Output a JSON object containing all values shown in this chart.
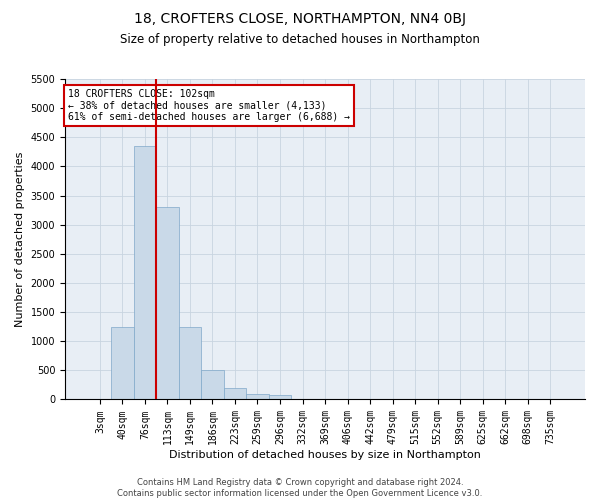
{
  "title": "18, CROFTERS CLOSE, NORTHAMPTON, NN4 0BJ",
  "subtitle": "Size of property relative to detached houses in Northampton",
  "xlabel": "Distribution of detached houses by size in Northampton",
  "ylabel": "Number of detached properties",
  "footer_line1": "Contains HM Land Registry data © Crown copyright and database right 2024.",
  "footer_line2": "Contains public sector information licensed under the Open Government Licence v3.0.",
  "annotation_title": "18 CROFTERS CLOSE: 102sqm",
  "annotation_line1": "← 38% of detached houses are smaller (4,133)",
  "annotation_line2": "61% of semi-detached houses are larger (6,688) →",
  "bar_categories": [
    "3sqm",
    "40sqm",
    "76sqm",
    "113sqm",
    "149sqm",
    "186sqm",
    "223sqm",
    "259sqm",
    "296sqm",
    "332sqm",
    "369sqm",
    "406sqm",
    "442sqm",
    "479sqm",
    "515sqm",
    "552sqm",
    "589sqm",
    "625sqm",
    "662sqm",
    "698sqm",
    "735sqm"
  ],
  "bar_values": [
    0,
    1250,
    4350,
    3300,
    1250,
    500,
    200,
    100,
    75,
    0,
    0,
    0,
    0,
    0,
    0,
    0,
    0,
    0,
    0,
    0,
    0
  ],
  "bar_color": "#c9d9e8",
  "bar_edge_color": "#7fa8c9",
  "vline_color": "#cc0000",
  "vline_pos": 2.5,
  "ylim_max": 5500,
  "yticks": [
    0,
    500,
    1000,
    1500,
    2000,
    2500,
    3000,
    3500,
    4000,
    4500,
    5000,
    5500
  ],
  "grid_color": "#c8d4e0",
  "bg_color": "#e8eef5",
  "annotation_box_facecolor": "#ffffff",
  "annotation_box_edgecolor": "#cc0000",
  "title_fontsize": 10,
  "subtitle_fontsize": 8.5,
  "xlabel_fontsize": 8,
  "ylabel_fontsize": 8,
  "tick_fontsize": 7,
  "annotation_fontsize": 7,
  "footer_fontsize": 6
}
